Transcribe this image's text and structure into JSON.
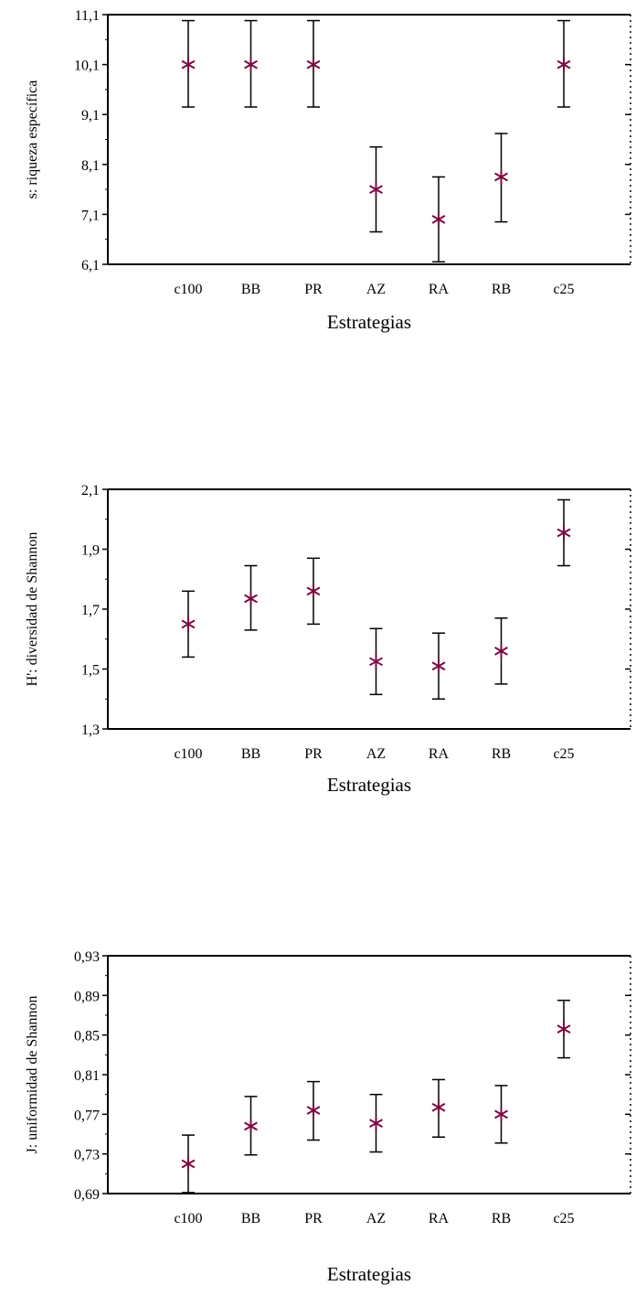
{
  "chart_data": [
    {
      "type": "scatter",
      "style": "means-with-error-bars",
      "categories": [
        "c100",
        "BB",
        "PR",
        "AZ",
        "RA",
        "RB",
        "c25"
      ],
      "ylabel": "s: riqueza específica",
      "xlabel": "Estrategias",
      "ylim": [
        6.1,
        11.1
      ],
      "yticks": [
        "6,1",
        "7,1",
        "8,1",
        "9,1",
        "10,1",
        "11,1"
      ],
      "grid": false,
      "series": [
        {
          "values": [
            10.1,
            10.1,
            10.1,
            7.6,
            7.0,
            7.85,
            10.1
          ],
          "lower": [
            9.25,
            9.25,
            9.25,
            6.75,
            6.15,
            6.95,
            9.25
          ],
          "upper": [
            10.98,
            10.98,
            10.98,
            8.45,
            7.85,
            8.72,
            10.98
          ]
        }
      ]
    },
    {
      "type": "scatter",
      "style": "means-with-error-bars",
      "categories": [
        "c100",
        "BB",
        "PR",
        "AZ",
        "RA",
        "RB",
        "c25"
      ],
      "ylabel": "H': diversidad de Shannon",
      "xlabel": "Estrategias",
      "ylim": [
        1.3,
        2.1
      ],
      "yticks": [
        "1,3",
        "1,5",
        "1,7",
        "1,9",
        "2,1"
      ],
      "grid": false,
      "series": [
        {
          "values": [
            1.65,
            1.735,
            1.76,
            1.525,
            1.51,
            1.56,
            1.955
          ],
          "lower": [
            1.54,
            1.63,
            1.65,
            1.415,
            1.4,
            1.45,
            1.845
          ],
          "upper": [
            1.76,
            1.845,
            1.87,
            1.635,
            1.62,
            1.67,
            2.065
          ]
        }
      ]
    },
    {
      "type": "scatter",
      "style": "means-with-error-bars",
      "categories": [
        "c100",
        "BB",
        "PR",
        "AZ",
        "RA",
        "RB",
        "c25"
      ],
      "ylabel": "J: uniformidad de Shannon",
      "xlabel": "Estrategias",
      "ylim": [
        0.69,
        0.93
      ],
      "yticks": [
        "0,69",
        "0,73",
        "0,77",
        "0,81",
        "0,85",
        "0,89",
        "0,93"
      ],
      "grid": false,
      "series": [
        {
          "values": [
            0.72,
            0.758,
            0.774,
            0.761,
            0.777,
            0.77,
            0.856
          ],
          "lower": [
            0.691,
            0.729,
            0.744,
            0.732,
            0.747,
            0.741,
            0.827
          ],
          "upper": [
            0.749,
            0.788,
            0.803,
            0.79,
            0.805,
            0.799,
            0.885
          ]
        }
      ]
    }
  ],
  "colors": {
    "marker": "#7a0a40",
    "axis": "#000000"
  }
}
